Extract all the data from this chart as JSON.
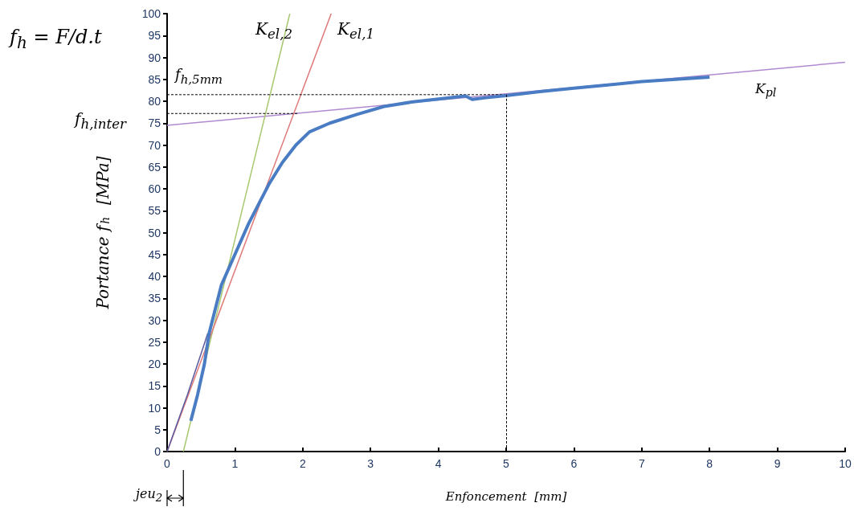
{
  "chart_data": {
    "type": "line",
    "xlabel": "Enfoncement  [mm]",
    "ylabel": "Portance f$_{h}$  [MPa]",
    "xlim": [
      0,
      10
    ],
    "xticks": [
      0,
      1,
      2,
      3,
      4,
      5,
      6,
      7,
      8,
      9,
      10
    ],
    "ylim": [
      0,
      100
    ],
    "yticks": [
      0,
      5,
      10,
      15,
      20,
      25,
      30,
      35,
      40,
      45,
      50,
      55,
      60,
      65,
      70,
      75,
      80,
      85,
      90,
      95,
      100
    ],
    "grid": false,
    "marker": "none",
    "series": [
      {
        "color": "#b08ad0",
        "x": [
          0,
          10
        ],
        "values": [
          74.5,
          88.9
        ]
      },
      {
        "color": "#a8c870",
        "x": [
          0.24,
          1.81
        ],
        "values": [
          0,
          100
        ]
      },
      {
        "color": "#e07a7a",
        "x": [
          0,
          2.42
        ],
        "values": [
          0,
          100
        ]
      },
      {
        "color": "#000000",
        "line_style": "dashed",
        "x": [
          0,
          5
        ],
        "values": [
          81.5,
          81.5
        ]
      },
      {
        "color": "#000000",
        "line_style": "dashed",
        "x": [
          0,
          1.92
        ],
        "values": [
          77.2,
          77.2
        ]
      },
      {
        "color": "#5a5aa0",
        "x": [
          0,
          0.3,
          0.6
        ],
        "values": [
          0,
          13,
          27
        ]
      },
      {
        "color": "#4a7cc4",
        "x": [
          0.35,
          0.45,
          0.55,
          0.62,
          0.8,
          1,
          1.2,
          1.5,
          1.7,
          1.9,
          2.1,
          2.4,
          2.8,
          3.2,
          3.6,
          4,
          4.4,
          4.5,
          4.7,
          5,
          5.5,
          6,
          6.5,
          7,
          7.5,
          8
        ],
        "values": [
          7,
          13,
          20,
          27,
          38,
          45,
          52,
          61,
          66,
          70,
          73,
          75,
          77,
          78.8,
          79.8,
          80.5,
          81.2,
          80.4,
          80.8,
          81.3,
          82.2,
          83,
          83.7,
          84.5,
          85,
          85.5
        ]
      }
    ],
    "ref_lines": [
      {
        "axis": "x",
        "value": 5,
        "color": "#000000",
        "line_style": "dashed"
      }
    ],
    "annotations": [
      "f$_{h}$ = F/d.t",
      "K$_{el,2}$",
      "K$_{el,1}$",
      "K$_{pl}$",
      "f$_{h,5mm}$",
      "f$_{h,inter}$",
      "jeu$_{2}$"
    ]
  }
}
